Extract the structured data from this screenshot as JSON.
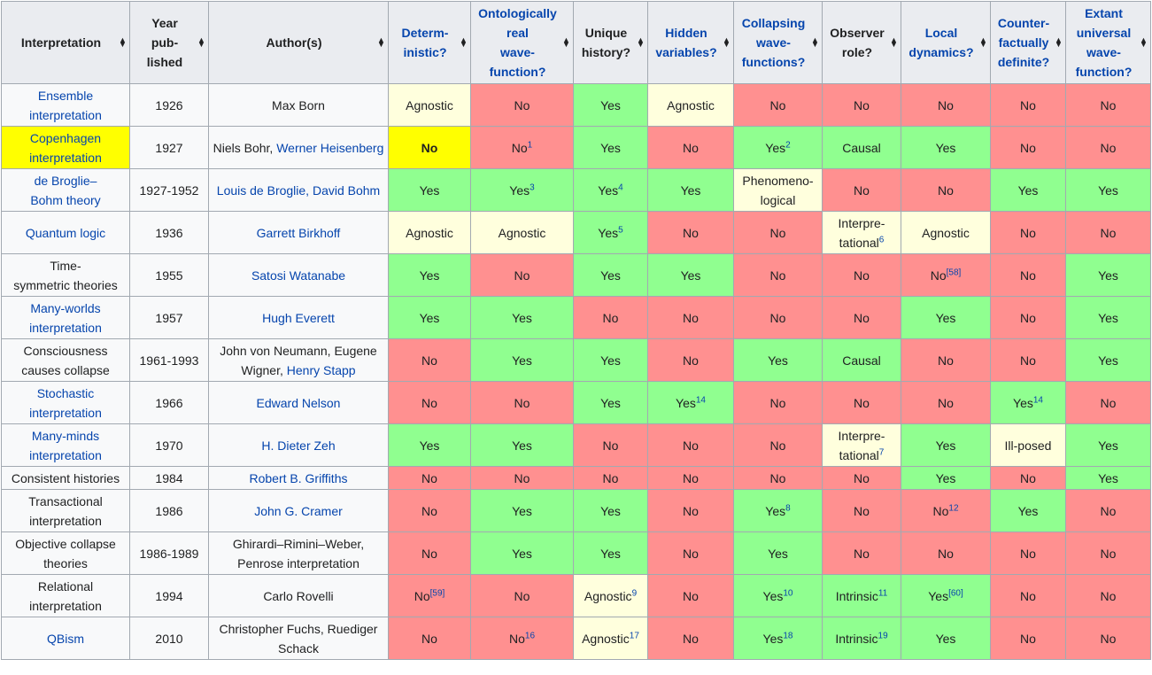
{
  "headers": [
    {
      "lines": [
        "Interpretation"
      ],
      "link": false
    },
    {
      "lines": [
        "Year",
        "pub-",
        "lished"
      ],
      "link": false
    },
    {
      "lines": [
        "Author(s)"
      ],
      "link": false
    },
    {
      "lines": [
        "Determ-",
        "inistic?"
      ],
      "link": true
    },
    {
      "lines": [
        "Ontologically",
        "real",
        "wave-",
        "function?"
      ],
      "link": true
    },
    {
      "lines": [
        "Unique",
        "history?"
      ],
      "link": false
    },
    {
      "lines": [
        "Hidden",
        "variables?"
      ],
      "link": true
    },
    {
      "lines": [
        "Collapsing",
        "wave-",
        "functions?"
      ],
      "link": true
    },
    {
      "lines": [
        "Observer",
        "role?"
      ],
      "link": false
    },
    {
      "lines": [
        "Local",
        "dynamics?"
      ],
      "link": true
    },
    {
      "lines": [
        "Counter-",
        "factually",
        "definite?"
      ],
      "link": true
    },
    {
      "lines": [
        "Extant",
        "universal",
        "wave-",
        "function?"
      ],
      "link": true
    }
  ],
  "rows": [
    {
      "name": [
        "Ensemble",
        "interpretation"
      ],
      "name_link": true,
      "highlight": false,
      "year": "1926",
      "authors": [
        {
          "t": "Max Born",
          "link": false
        }
      ],
      "cells": [
        {
          "v": "Agnostic",
          "c": "yellow"
        },
        {
          "v": "No",
          "c": "red"
        },
        {
          "v": "Yes",
          "c": "green"
        },
        {
          "v": "Agnostic",
          "c": "yellow"
        },
        {
          "v": "No",
          "c": "red"
        },
        {
          "v": "No",
          "c": "red"
        },
        {
          "v": "No",
          "c": "red"
        },
        {
          "v": "No",
          "c": "red"
        },
        {
          "v": "No",
          "c": "red"
        }
      ]
    },
    {
      "name": [
        "Copenhagen",
        "interpretation"
      ],
      "name_link": true,
      "highlight": true,
      "year": "1927",
      "authors": [
        {
          "t": "Niels Bohr, ",
          "link": false
        },
        {
          "t": "Werner Heisenberg",
          "link": true
        }
      ],
      "cells": [
        {
          "v": "No",
          "c": "hl",
          "bold": true
        },
        {
          "v": "No",
          "c": "red",
          "sup": "1"
        },
        {
          "v": "Yes",
          "c": "green"
        },
        {
          "v": "No",
          "c": "red"
        },
        {
          "v": "Yes",
          "c": "green",
          "sup": "2"
        },
        {
          "v": "Causal",
          "c": "green"
        },
        {
          "v": "Yes",
          "c": "green"
        },
        {
          "v": "No",
          "c": "red"
        },
        {
          "v": "No",
          "c": "red"
        }
      ]
    },
    {
      "name": [
        "de Broglie–",
        "Bohm theory"
      ],
      "name_link": true,
      "highlight": false,
      "year": "1927-1952",
      "authors": [
        {
          "t": "Louis de Broglie, David Bohm",
          "link": true
        }
      ],
      "cells": [
        {
          "v": "Yes",
          "c": "green"
        },
        {
          "v": "Yes",
          "c": "green",
          "sup": "3"
        },
        {
          "v": "Yes",
          "c": "green",
          "sup": "4"
        },
        {
          "v": "Yes",
          "c": "green"
        },
        {
          "v": "Phenomeno-logical",
          "c": "yellow"
        },
        {
          "v": "No",
          "c": "red"
        },
        {
          "v": "No",
          "c": "red"
        },
        {
          "v": "Yes",
          "c": "green"
        },
        {
          "v": "Yes",
          "c": "green"
        }
      ]
    },
    {
      "name": [
        "Quantum logic"
      ],
      "name_link": true,
      "highlight": false,
      "year": "1936",
      "authors": [
        {
          "t": "Garrett Birkhoff",
          "link": true
        }
      ],
      "cells": [
        {
          "v": "Agnostic",
          "c": "yellow"
        },
        {
          "v": "Agnostic",
          "c": "yellow"
        },
        {
          "v": "Yes",
          "c": "green",
          "sup": "5"
        },
        {
          "v": "No",
          "c": "red"
        },
        {
          "v": "No",
          "c": "red"
        },
        {
          "v": "Interpre-tational",
          "c": "yellow",
          "sup": "6"
        },
        {
          "v": "Agnostic",
          "c": "yellow"
        },
        {
          "v": "No",
          "c": "red"
        },
        {
          "v": "No",
          "c": "red"
        }
      ]
    },
    {
      "name": [
        "Time-",
        "symmetric theories"
      ],
      "name_link": false,
      "highlight": false,
      "year": "1955",
      "authors": [
        {
          "t": "Satosi Watanabe",
          "link": true
        }
      ],
      "cells": [
        {
          "v": "Yes",
          "c": "green"
        },
        {
          "v": "No",
          "c": "red"
        },
        {
          "v": "Yes",
          "c": "green"
        },
        {
          "v": "Yes",
          "c": "green"
        },
        {
          "v": "No",
          "c": "red"
        },
        {
          "v": "No",
          "c": "red"
        },
        {
          "v": "No",
          "c": "red",
          "sup": "[58]"
        },
        {
          "v": "No",
          "c": "red"
        },
        {
          "v": "Yes",
          "c": "green"
        }
      ]
    },
    {
      "name": [
        "Many-worlds",
        "interpretation"
      ],
      "name_link": true,
      "highlight": false,
      "year": "1957",
      "authors": [
        {
          "t": "Hugh Everett",
          "link": true
        }
      ],
      "cells": [
        {
          "v": "Yes",
          "c": "green"
        },
        {
          "v": "Yes",
          "c": "green"
        },
        {
          "v": "No",
          "c": "red"
        },
        {
          "v": "No",
          "c": "red"
        },
        {
          "v": "No",
          "c": "red"
        },
        {
          "v": "No",
          "c": "red"
        },
        {
          "v": "Yes",
          "c": "green"
        },
        {
          "v": "No",
          "c": "red"
        },
        {
          "v": "Yes",
          "c": "green"
        }
      ]
    },
    {
      "name": [
        "Consciousness",
        "causes collapse"
      ],
      "name_link": false,
      "highlight": false,
      "year": "1961-1993",
      "authors": [
        {
          "t": "John von Neumann",
          "link": false
        },
        {
          "t": ", ",
          "link": false
        },
        {
          "t": "Eugene Wigner",
          "link": false
        },
        {
          "t": ", ",
          "link": false
        },
        {
          "t": "Henry Stapp",
          "link": true
        }
      ],
      "cells": [
        {
          "v": "No",
          "c": "red"
        },
        {
          "v": "Yes",
          "c": "green"
        },
        {
          "v": "Yes",
          "c": "green"
        },
        {
          "v": "No",
          "c": "red"
        },
        {
          "v": "Yes",
          "c": "green"
        },
        {
          "v": "Causal",
          "c": "green"
        },
        {
          "v": "No",
          "c": "red"
        },
        {
          "v": "No",
          "c": "red"
        },
        {
          "v": "Yes",
          "c": "green"
        }
      ]
    },
    {
      "name": [
        "Stochastic",
        "interpretation"
      ],
      "name_link": true,
      "highlight": false,
      "year": "1966",
      "authors": [
        {
          "t": "Edward Nelson",
          "link": true
        }
      ],
      "cells": [
        {
          "v": "No",
          "c": "red"
        },
        {
          "v": "No",
          "c": "red"
        },
        {
          "v": "Yes",
          "c": "green"
        },
        {
          "v": "Yes",
          "c": "green",
          "sup": "14"
        },
        {
          "v": "No",
          "c": "red"
        },
        {
          "v": "No",
          "c": "red"
        },
        {
          "v": "No",
          "c": "red"
        },
        {
          "v": "Yes",
          "c": "green",
          "sup": "14"
        },
        {
          "v": "No",
          "c": "red"
        }
      ]
    },
    {
      "name": [
        "Many-minds",
        "interpretation"
      ],
      "name_link": true,
      "highlight": false,
      "year": "1970",
      "authors": [
        {
          "t": "H. Dieter Zeh",
          "link": true
        }
      ],
      "cells": [
        {
          "v": "Yes",
          "c": "green"
        },
        {
          "v": "Yes",
          "c": "green"
        },
        {
          "v": "No",
          "c": "red"
        },
        {
          "v": "No",
          "c": "red"
        },
        {
          "v": "No",
          "c": "red"
        },
        {
          "v": "Interpre-tational",
          "c": "yellow",
          "sup": "7"
        },
        {
          "v": "Yes",
          "c": "green"
        },
        {
          "v": "Ill-posed",
          "c": "yellow"
        },
        {
          "v": "Yes",
          "c": "green"
        }
      ]
    },
    {
      "name": [
        "Consistent histories"
      ],
      "name_link": false,
      "highlight": false,
      "short": true,
      "year": "1984",
      "authors": [
        {
          "t": "Robert B. Griffiths",
          "link": true
        }
      ],
      "cells": [
        {
          "v": "No",
          "c": "red"
        },
        {
          "v": "No",
          "c": "red"
        },
        {
          "v": "No",
          "c": "red"
        },
        {
          "v": "No",
          "c": "red"
        },
        {
          "v": "No",
          "c": "red"
        },
        {
          "v": "No",
          "c": "red"
        },
        {
          "v": "Yes",
          "c": "green"
        },
        {
          "v": "No",
          "c": "red"
        },
        {
          "v": "Yes",
          "c": "green"
        }
      ]
    },
    {
      "name": [
        "Transactional",
        "interpretation"
      ],
      "name_link": false,
      "highlight": false,
      "year": "1986",
      "authors": [
        {
          "t": "John G. Cramer",
          "link": true
        }
      ],
      "cells": [
        {
          "v": "No",
          "c": "red"
        },
        {
          "v": "Yes",
          "c": "green"
        },
        {
          "v": "Yes",
          "c": "green"
        },
        {
          "v": "No",
          "c": "red"
        },
        {
          "v": "Yes",
          "c": "green",
          "sup": "8"
        },
        {
          "v": "No",
          "c": "red"
        },
        {
          "v": "No",
          "c": "red",
          "sup": "12"
        },
        {
          "v": "Yes",
          "c": "green"
        },
        {
          "v": "No",
          "c": "red"
        }
      ]
    },
    {
      "name": [
        "Objective collapse",
        "theories"
      ],
      "name_link": false,
      "highlight": false,
      "year": "1986-1989",
      "authors": [
        {
          "t": "Ghirardi–Rimini–Weber, Penrose interpretation",
          "link": false
        }
      ],
      "cells": [
        {
          "v": "No",
          "c": "red"
        },
        {
          "v": "Yes",
          "c": "green"
        },
        {
          "v": "Yes",
          "c": "green"
        },
        {
          "v": "No",
          "c": "red"
        },
        {
          "v": "Yes",
          "c": "green"
        },
        {
          "v": "No",
          "c": "red"
        },
        {
          "v": "No",
          "c": "red"
        },
        {
          "v": "No",
          "c": "red"
        },
        {
          "v": "No",
          "c": "red"
        }
      ]
    },
    {
      "name": [
        "Relational",
        "interpretation"
      ],
      "name_link": false,
      "highlight": false,
      "year": "1994",
      "authors": [
        {
          "t": "Carlo Rovelli",
          "link": false
        }
      ],
      "cells": [
        {
          "v": "No",
          "c": "red",
          "sup": "[59]"
        },
        {
          "v": "No",
          "c": "red"
        },
        {
          "v": "Agnostic",
          "c": "yellow",
          "sup": "9"
        },
        {
          "v": "No",
          "c": "red"
        },
        {
          "v": "Yes",
          "c": "green",
          "sup": "10"
        },
        {
          "v": "Intrinsic",
          "c": "green",
          "sup": "11"
        },
        {
          "v": "Yes",
          "c": "green",
          "sup": "[60]"
        },
        {
          "v": "No",
          "c": "red"
        },
        {
          "v": "No",
          "c": "red"
        }
      ]
    },
    {
      "name": [
        "QBism"
      ],
      "name_link": true,
      "highlight": false,
      "year": "2010",
      "authors": [
        {
          "t": "Christopher Fuchs, Ruediger Schack",
          "link": false
        }
      ],
      "cells": [
        {
          "v": "No",
          "c": "red"
        },
        {
          "v": "No",
          "c": "red",
          "sup": "16"
        },
        {
          "v": "Agnostic",
          "c": "yellow",
          "sup": "17"
        },
        {
          "v": "No",
          "c": "red"
        },
        {
          "v": "Yes",
          "c": "green",
          "sup": "18"
        },
        {
          "v": "Intrinsic",
          "c": "green",
          "sup": "19"
        },
        {
          "v": "Yes",
          "c": "green"
        },
        {
          "v": "No",
          "c": "red"
        },
        {
          "v": "No",
          "c": "red"
        }
      ]
    }
  ]
}
